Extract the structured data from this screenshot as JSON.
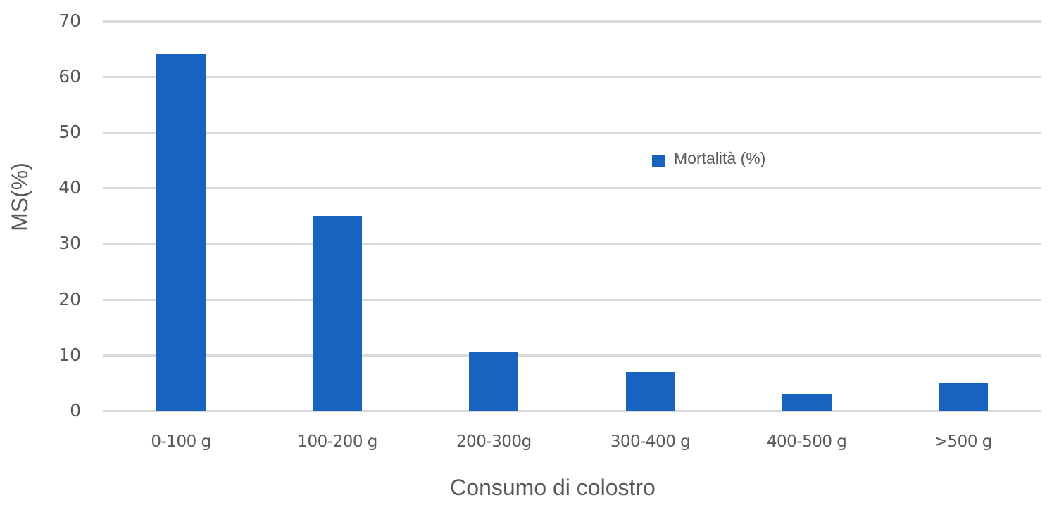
{
  "chart_data": {
    "type": "bar",
    "title": "",
    "xlabel": "Consumo di colostro",
    "ylabel": "MS(%)",
    "categories": [
      "0-100 g",
      "100-200 g",
      "200-300g",
      "300-400 g",
      "400-500 g",
      ">500 g"
    ],
    "series": [
      {
        "name": "Mortalità (%)",
        "values": [
          64,
          35,
          10.5,
          7,
          3,
          5
        ],
        "color": "#1763bf"
      }
    ],
    "ylim": [
      0,
      70
    ],
    "yticks": [
      "0",
      "10",
      "20",
      "30",
      "40",
      "50",
      "60",
      "70"
    ],
    "grid": true,
    "legend_position": "inside-upper-right"
  },
  "colors": {
    "bar": "#1763bf",
    "grid": "#d9d9d9",
    "text": "#595959"
  },
  "legend": {
    "label": "Mortalità (%)"
  }
}
